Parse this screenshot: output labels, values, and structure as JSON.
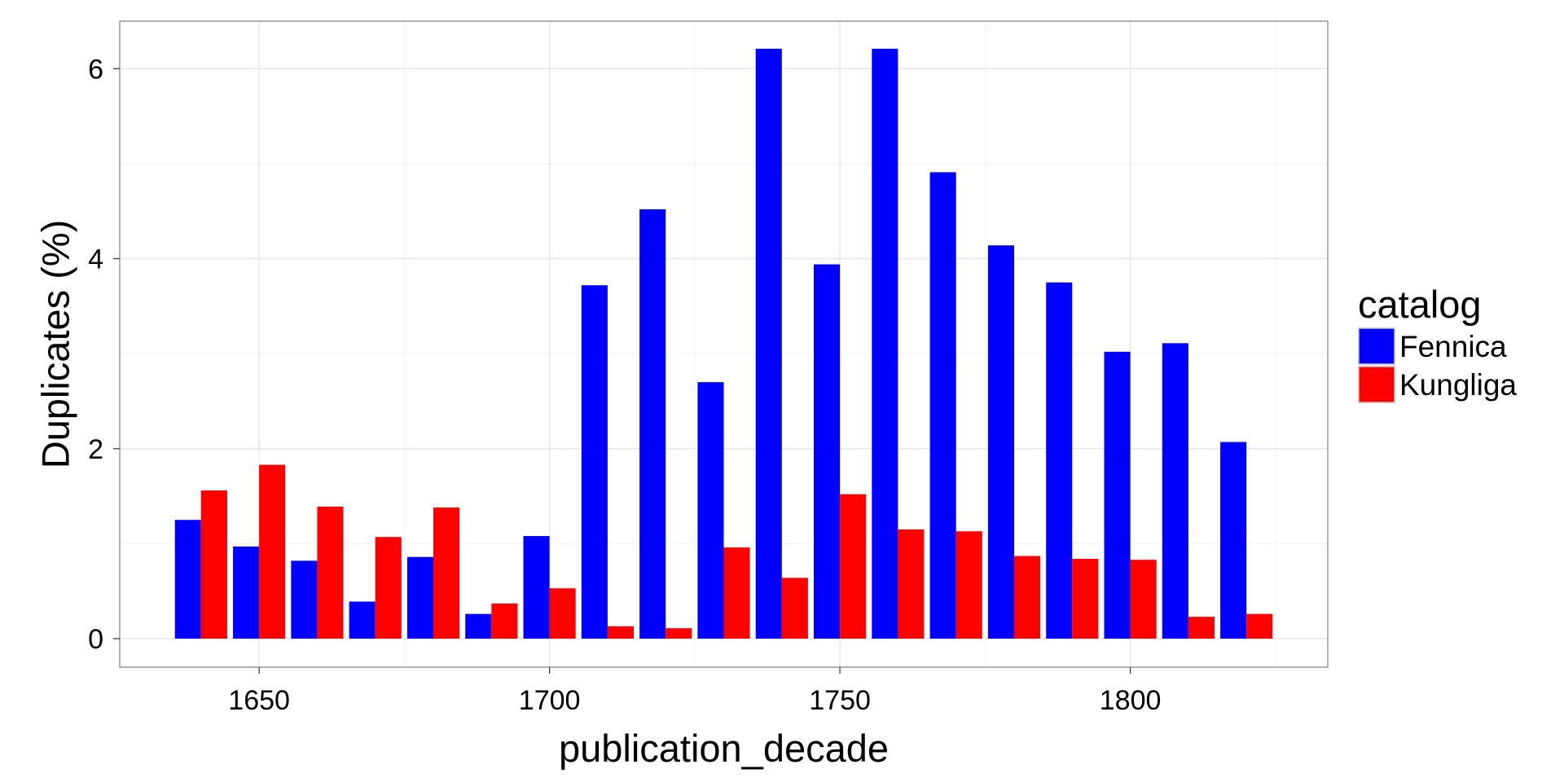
{
  "chart_data": {
    "type": "bar",
    "title": "",
    "xlabel": "publication_decade",
    "ylabel": "Duplicates (%)",
    "x": [
      1640,
      1650,
      1660,
      1670,
      1680,
      1690,
      1700,
      1710,
      1720,
      1730,
      1740,
      1750,
      1760,
      1770,
      1780,
      1790,
      1800,
      1810,
      1820
    ],
    "xlim": [
      1626,
      1834
    ],
    "xticks": [
      1650,
      1700,
      1750,
      1800
    ],
    "xtick_labels": [
      "1650",
      "1700",
      "1750",
      "1800"
    ],
    "ylim": [
      -0.3,
      6.5
    ],
    "yticks": [
      0,
      2,
      4,
      6
    ],
    "ytick_labels": [
      "0",
      "2",
      "4",
      "6"
    ],
    "series": [
      {
        "name": "Fennica",
        "color": "#0000ff",
        "values": [
          1.25,
          0.97,
          0.82,
          0.39,
          0.86,
          0.26,
          1.08,
          3.72,
          4.52,
          2.7,
          6.21,
          3.94,
          6.21,
          4.91,
          4.14,
          3.75,
          3.02,
          3.11,
          2.07
        ]
      },
      {
        "name": "Kungliga",
        "color": "#ff0000",
        "values": [
          1.56,
          1.83,
          1.39,
          1.07,
          1.38,
          0.37,
          0.53,
          0.13,
          0.11,
          0.96,
          0.64,
          1.52,
          1.15,
          1.13,
          0.87,
          0.84,
          0.83,
          0.23,
          0.26
        ]
      }
    ],
    "legend": {
      "title": "catalog",
      "position": "right"
    },
    "grid": true,
    "theme": "bw"
  }
}
